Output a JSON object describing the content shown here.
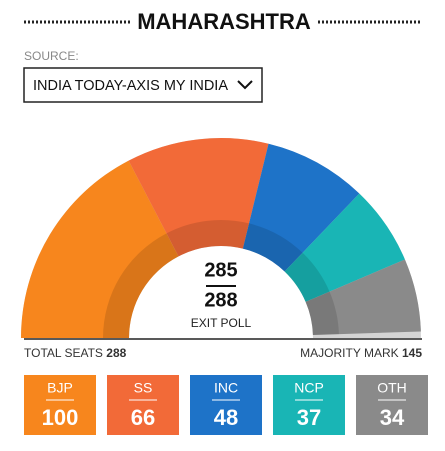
{
  "header": {
    "title": "MAHARASHTRA"
  },
  "source": {
    "label": "SOURCE:",
    "selected": "INDIA TODAY-AXIS MY INDIA"
  },
  "chart_data": {
    "type": "half-donut",
    "categories": [
      "BJP",
      "SS",
      "INC",
      "NCP",
      "OTH"
    ],
    "values": [
      100,
      66,
      48,
      37,
      34
    ],
    "colors": [
      "#f7861d",
      "#f26a38",
      "#1e73c8",
      "#19b5b5",
      "#8a8a8a"
    ],
    "declared": 285,
    "total": 288,
    "center_label": "EXIT POLL",
    "total_label": "TOTAL SEATS",
    "majority_label": "MAJORITY MARK",
    "majority": 145
  }
}
